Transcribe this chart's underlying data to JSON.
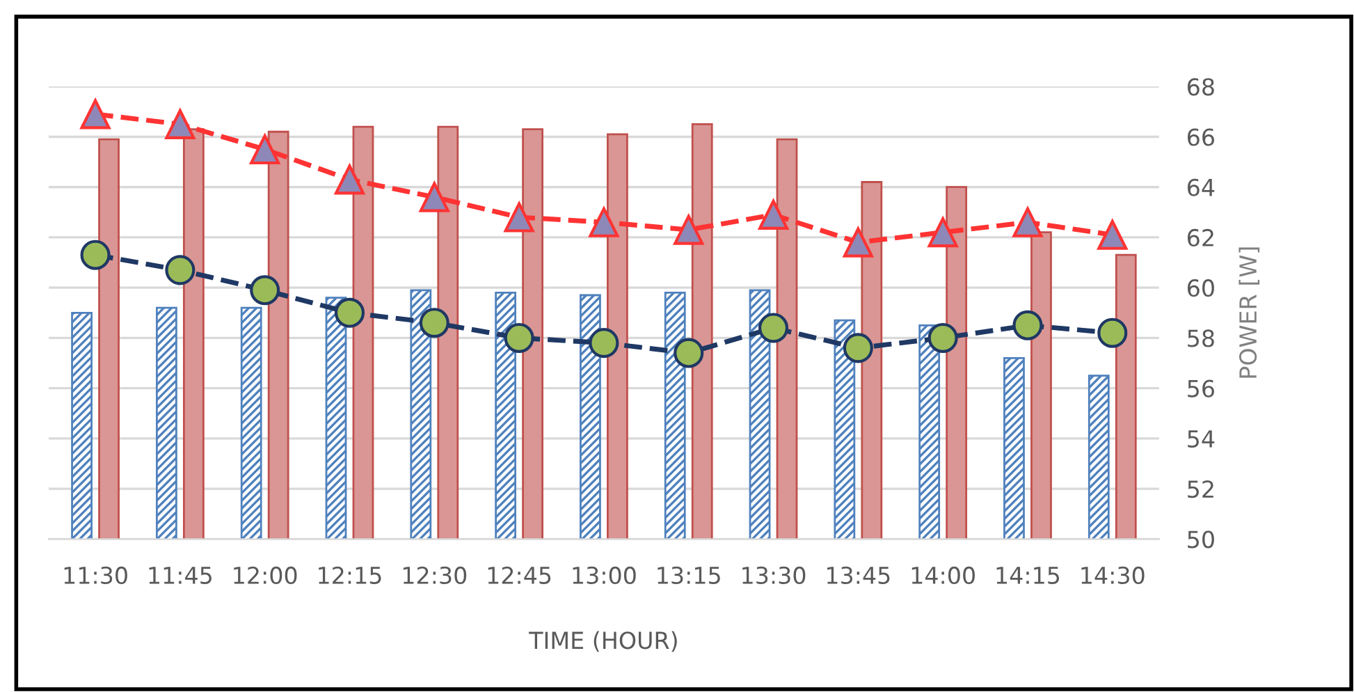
{
  "chart_data": {
    "type": "bar",
    "xlabel": "TIME (HOUR)",
    "y2label": "POWER [W]",
    "categories": [
      "11:30",
      "11:45",
      "12:00",
      "12:15",
      "12:30",
      "12:45",
      "13:00",
      "13:15",
      "13:30",
      "13:45",
      "14:00",
      "14:15",
      "14:30"
    ],
    "series": [
      {
        "axis": "y2",
        "color": "#4f81bd",
        "values": [
          59.0,
          59.2,
          59.2,
          59.6,
          59.9,
          59.8,
          59.7,
          59.8,
          59.9,
          58.7,
          58.5,
          57.2,
          56.5
        ]
      },
      {
        "axis": "y2",
        "color": "#d99694",
        "values": [
          65.9,
          66.3,
          66.2,
          66.4,
          66.4,
          66.3,
          66.1,
          66.5,
          65.9,
          64.2,
          64.0,
          62.2,
          61.3
        ]
      },
      {
        "type": "line",
        "axis": "y2",
        "color": "#ff3333",
        "marker": "triangle",
        "line_style": "dashed",
        "values": [
          66.9,
          66.5,
          65.5,
          64.3,
          63.6,
          62.8,
          62.6,
          62.3,
          62.9,
          61.8,
          62.2,
          62.6,
          62.1
        ]
      },
      {
        "type": "line",
        "axis": "y2",
        "color": "#1f3864",
        "marker": "circle",
        "line_style": "dashed",
        "values": [
          61.3,
          60.7,
          59.9,
          59.0,
          58.6,
          58.0,
          57.8,
          57.4,
          58.4,
          57.6,
          58.0,
          58.5,
          58.2
        ]
      }
    ],
    "y2lim": [
      50,
      68
    ],
    "y2ticks": [
      50,
      52,
      54,
      56,
      58,
      60,
      62,
      64,
      66,
      68
    ],
    "grid": "y",
    "legend": false
  }
}
